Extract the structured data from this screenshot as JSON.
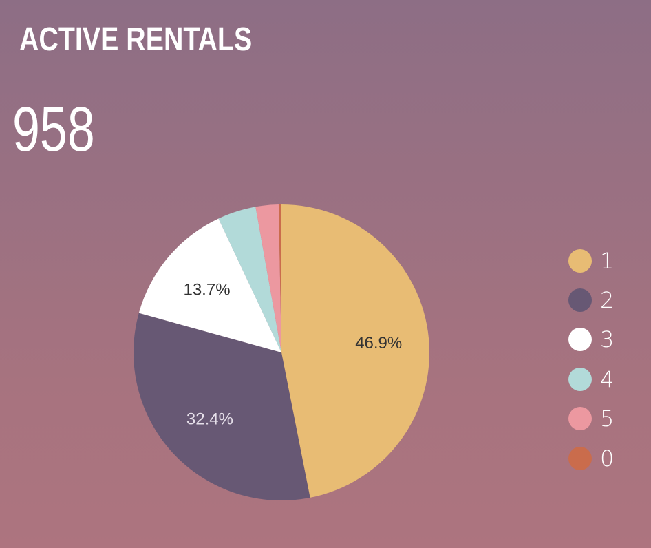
{
  "header": {
    "title": "ACTIVE RENTALS",
    "total": "958"
  },
  "chart_data": {
    "type": "pie",
    "categories": [
      "1",
      "2",
      "3",
      "4",
      "5",
      "0"
    ],
    "values": [
      46.9,
      32.4,
      13.7,
      4.2,
      2.5,
      0.3
    ],
    "labels": [
      "46.9%",
      "32.4%",
      "13.7%",
      "",
      "",
      ""
    ],
    "colors": [
      "#e8bc74",
      "#675874",
      "#ffffff",
      "#b2dad9",
      "#ec98a0",
      "#ca6c4c"
    ],
    "label_colors": [
      "#333333",
      "#e6e0ea",
      "#333333",
      "#333333",
      "#333333",
      "#333333"
    ],
    "legend_position": "right"
  }
}
